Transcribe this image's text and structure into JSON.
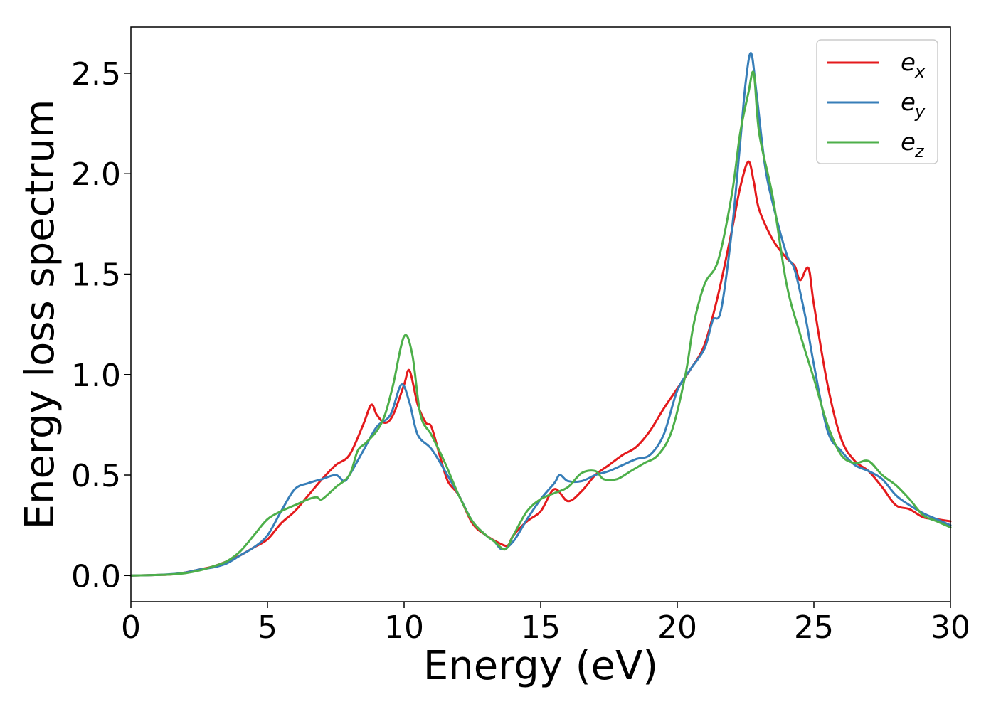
{
  "chart_data": {
    "type": "line",
    "xlabel": "Energy (eV)",
    "ylabel": "Energy loss spectrum",
    "xlim": [
      0,
      30
    ],
    "ylim": [
      -0.13,
      2.73
    ],
    "x_ticks": [
      0,
      5,
      10,
      15,
      20,
      25,
      30
    ],
    "x_tick_labels": [
      "0",
      "5",
      "10",
      "15",
      "20",
      "25",
      "30"
    ],
    "y_ticks": [
      0.0,
      0.5,
      1.0,
      1.5,
      2.0,
      2.5
    ],
    "y_tick_labels": [
      "0.0",
      "0.5",
      "1.0",
      "1.5",
      "2.0",
      "2.5"
    ],
    "grid": false,
    "legend_position": "top-right",
    "series": [
      {
        "name": "e_x",
        "legend_base": "e",
        "legend_sub": "x",
        "color": "#e41a1c",
        "points": [
          [
            0,
            0.0
          ],
          [
            1,
            0.003
          ],
          [
            1.5,
            0.006
          ],
          [
            2,
            0.015
          ],
          [
            2.5,
            0.03
          ],
          [
            3,
            0.045
          ],
          [
            3.5,
            0.07
          ],
          [
            4,
            0.1
          ],
          [
            4.5,
            0.14
          ],
          [
            5,
            0.18
          ],
          [
            5.5,
            0.26
          ],
          [
            6,
            0.32
          ],
          [
            6.5,
            0.4
          ],
          [
            7,
            0.48
          ],
          [
            7.5,
            0.55
          ],
          [
            8,
            0.6
          ],
          [
            8.5,
            0.75
          ],
          [
            8.8,
            0.85
          ],
          [
            9,
            0.8
          ],
          [
            9.3,
            0.76
          ],
          [
            9.6,
            0.8
          ],
          [
            10,
            0.95
          ],
          [
            10.2,
            1.02
          ],
          [
            10.5,
            0.85
          ],
          [
            10.8,
            0.76
          ],
          [
            11,
            0.74
          ],
          [
            11.3,
            0.6
          ],
          [
            11.6,
            0.47
          ],
          [
            12,
            0.4
          ],
          [
            12.5,
            0.26
          ],
          [
            13,
            0.2
          ],
          [
            13.5,
            0.16
          ],
          [
            13.8,
            0.15
          ],
          [
            14,
            0.2
          ],
          [
            14.5,
            0.27
          ],
          [
            15,
            0.32
          ],
          [
            15.5,
            0.43
          ],
          [
            16,
            0.37
          ],
          [
            16.5,
            0.42
          ],
          [
            17,
            0.5
          ],
          [
            17.5,
            0.55
          ],
          [
            18,
            0.6
          ],
          [
            18.5,
            0.64
          ],
          [
            19,
            0.72
          ],
          [
            19.5,
            0.83
          ],
          [
            20,
            0.93
          ],
          [
            20.5,
            1.03
          ],
          [
            21,
            1.15
          ],
          [
            21.5,
            1.4
          ],
          [
            22,
            1.72
          ],
          [
            22.3,
            1.93
          ],
          [
            22.6,
            2.06
          ],
          [
            22.8,
            1.96
          ],
          [
            23,
            1.82
          ],
          [
            23.5,
            1.67
          ],
          [
            24,
            1.58
          ],
          [
            24.3,
            1.54
          ],
          [
            24.5,
            1.47
          ],
          [
            24.8,
            1.53
          ],
          [
            25,
            1.35
          ],
          [
            25.5,
            0.95
          ],
          [
            26,
            0.68
          ],
          [
            26.5,
            0.57
          ],
          [
            27,
            0.52
          ],
          [
            27.5,
            0.44
          ],
          [
            28,
            0.35
          ],
          [
            28.5,
            0.33
          ],
          [
            29,
            0.29
          ],
          [
            29.5,
            0.28
          ],
          [
            30,
            0.27
          ]
        ]
      },
      {
        "name": "e_y",
        "legend_base": "e",
        "legend_sub": "y",
        "color": "#377eb8",
        "points": [
          [
            0,
            0.0
          ],
          [
            1,
            0.003
          ],
          [
            1.5,
            0.007
          ],
          [
            2,
            0.015
          ],
          [
            2.5,
            0.03
          ],
          [
            3,
            0.04
          ],
          [
            3.5,
            0.06
          ],
          [
            4,
            0.1
          ],
          [
            4.5,
            0.14
          ],
          [
            5,
            0.2
          ],
          [
            5.5,
            0.32
          ],
          [
            6,
            0.43
          ],
          [
            6.5,
            0.46
          ],
          [
            7,
            0.48
          ],
          [
            7.5,
            0.5
          ],
          [
            7.8,
            0.47
          ],
          [
            8,
            0.5
          ],
          [
            8.5,
            0.62
          ],
          [
            9,
            0.74
          ],
          [
            9.5,
            0.8
          ],
          [
            9.9,
            0.95
          ],
          [
            10.2,
            0.86
          ],
          [
            10.5,
            0.7
          ],
          [
            11,
            0.63
          ],
          [
            11.5,
            0.52
          ],
          [
            12,
            0.4
          ],
          [
            12.5,
            0.27
          ],
          [
            13,
            0.2
          ],
          [
            13.3,
            0.17
          ],
          [
            13.6,
            0.13
          ],
          [
            14,
            0.17
          ],
          [
            14.5,
            0.28
          ],
          [
            15,
            0.38
          ],
          [
            15.5,
            0.46
          ],
          [
            15.7,
            0.5
          ],
          [
            16,
            0.47
          ],
          [
            16.5,
            0.47
          ],
          [
            17,
            0.5
          ],
          [
            17.5,
            0.52
          ],
          [
            18,
            0.55
          ],
          [
            18.5,
            0.58
          ],
          [
            19,
            0.6
          ],
          [
            19.5,
            0.7
          ],
          [
            20,
            0.92
          ],
          [
            20.5,
            1.03
          ],
          [
            21,
            1.13
          ],
          [
            21.3,
            1.27
          ],
          [
            21.6,
            1.32
          ],
          [
            22,
            1.72
          ],
          [
            22.3,
            2.15
          ],
          [
            22.5,
            2.45
          ],
          [
            22.7,
            2.6
          ],
          [
            22.9,
            2.4
          ],
          [
            23.2,
            2.05
          ],
          [
            23.5,
            1.85
          ],
          [
            24,
            1.6
          ],
          [
            24.3,
            1.52
          ],
          [
            24.7,
            1.28
          ],
          [
            25,
            1.05
          ],
          [
            25.5,
            0.72
          ],
          [
            26,
            0.62
          ],
          [
            26.5,
            0.55
          ],
          [
            27,
            0.52
          ],
          [
            27.5,
            0.48
          ],
          [
            28,
            0.4
          ],
          [
            28.5,
            0.35
          ],
          [
            29,
            0.31
          ],
          [
            29.5,
            0.28
          ],
          [
            30,
            0.25
          ]
        ]
      },
      {
        "name": "e_z",
        "legend_base": "e",
        "legend_sub": "z",
        "color": "#4daf4a",
        "points": [
          [
            0,
            0.0
          ],
          [
            1,
            0.003
          ],
          [
            1.5,
            0.006
          ],
          [
            2,
            0.012
          ],
          [
            2.5,
            0.025
          ],
          [
            3,
            0.045
          ],
          [
            3.5,
            0.07
          ],
          [
            4,
            0.12
          ],
          [
            4.5,
            0.2
          ],
          [
            5,
            0.28
          ],
          [
            5.5,
            0.32
          ],
          [
            6,
            0.35
          ],
          [
            6.5,
            0.38
          ],
          [
            6.8,
            0.39
          ],
          [
            7,
            0.38
          ],
          [
            7.5,
            0.44
          ],
          [
            8,
            0.5
          ],
          [
            8.3,
            0.62
          ],
          [
            8.6,
            0.66
          ],
          [
            9,
            0.72
          ],
          [
            9.3,
            0.8
          ],
          [
            9.6,
            0.95
          ],
          [
            10,
            1.19
          ],
          [
            10.3,
            1.1
          ],
          [
            10.6,
            0.8
          ],
          [
            11,
            0.7
          ],
          [
            11.5,
            0.56
          ],
          [
            12,
            0.4
          ],
          [
            12.5,
            0.27
          ],
          [
            13,
            0.2
          ],
          [
            13.3,
            0.17
          ],
          [
            13.7,
            0.13
          ],
          [
            14,
            0.2
          ],
          [
            14.5,
            0.32
          ],
          [
            15,
            0.38
          ],
          [
            15.5,
            0.41
          ],
          [
            16,
            0.44
          ],
          [
            16.5,
            0.51
          ],
          [
            17,
            0.52
          ],
          [
            17.3,
            0.48
          ],
          [
            17.8,
            0.48
          ],
          [
            18.3,
            0.52
          ],
          [
            18.8,
            0.56
          ],
          [
            19.3,
            0.6
          ],
          [
            19.8,
            0.72
          ],
          [
            20.3,
            1.0
          ],
          [
            20.6,
            1.25
          ],
          [
            21,
            1.45
          ],
          [
            21.5,
            1.57
          ],
          [
            22,
            1.9
          ],
          [
            22.3,
            2.2
          ],
          [
            22.6,
            2.4
          ],
          [
            22.8,
            2.5
          ],
          [
            23,
            2.2
          ],
          [
            23.5,
            1.88
          ],
          [
            24,
            1.45
          ],
          [
            24.5,
            1.2
          ],
          [
            25,
            0.98
          ],
          [
            25.5,
            0.75
          ],
          [
            26,
            0.6
          ],
          [
            26.5,
            0.56
          ],
          [
            27,
            0.57
          ],
          [
            27.5,
            0.5
          ],
          [
            28,
            0.45
          ],
          [
            28.5,
            0.38
          ],
          [
            29,
            0.3
          ],
          [
            29.5,
            0.27
          ],
          [
            30,
            0.24
          ]
        ]
      }
    ]
  }
}
